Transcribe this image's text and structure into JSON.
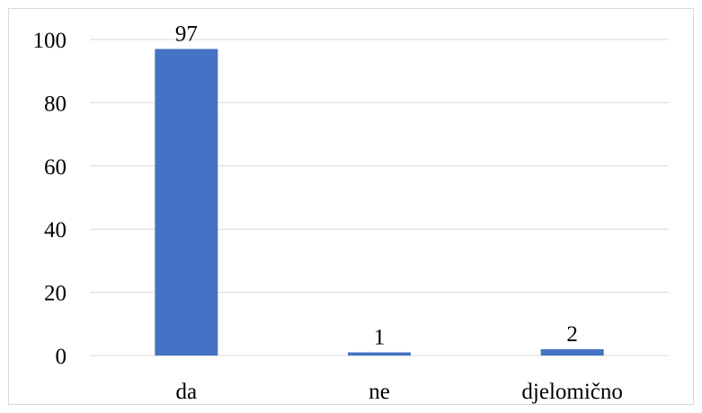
{
  "chart_data": {
    "type": "bar",
    "categories": [
      "da",
      "ne",
      "djelomično"
    ],
    "values": [
      97,
      1,
      2
    ],
    "data_labels": [
      "97",
      "1",
      "2"
    ],
    "y_ticks": [
      "0",
      "20",
      "40",
      "60",
      "80",
      "100"
    ],
    "ylim": [
      0,
      100
    ],
    "grid": "horizontal",
    "title": "",
    "xlabel": "",
    "ylabel": "",
    "bar_color": "#4472c4",
    "grid_color": "#d9d9d9"
  }
}
